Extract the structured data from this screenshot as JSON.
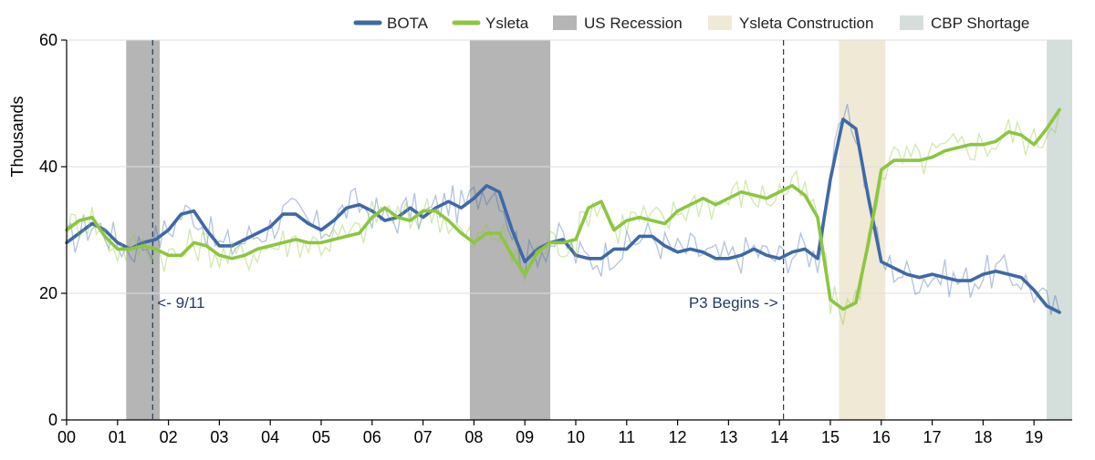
{
  "chart_data": {
    "type": "line",
    "ylabel": "Thousands",
    "xlim": [
      0,
      19.75
    ],
    "ylim": [
      0,
      60
    ],
    "y_ticks": [
      0,
      20,
      40,
      60
    ],
    "x_ticks": [
      0,
      1,
      2,
      3,
      4,
      5,
      6,
      7,
      8,
      9,
      10,
      11,
      12,
      13,
      14,
      15,
      16,
      17,
      18,
      19
    ],
    "x_tick_labels": [
      "00",
      "01",
      "02",
      "03",
      "04",
      "05",
      "06",
      "07",
      "08",
      "09",
      "10",
      "11",
      "12",
      "13",
      "14",
      "15",
      "16",
      "17",
      "18",
      "19"
    ],
    "grid": "horizontal",
    "legend_position": "top",
    "shaded_regions": [
      {
        "name": "US Recession",
        "ranges": [
          [
            1.17,
            1.83
          ],
          [
            7.92,
            9.5
          ]
        ],
        "color": "#b5b5b5"
      },
      {
        "name": "Ysleta Construction",
        "ranges": [
          [
            15.17,
            16.08
          ]
        ],
        "color": "#efe9d6"
      },
      {
        "name": "CBP Shortage",
        "ranges": [
          [
            19.25,
            19.75
          ]
        ],
        "color": "#d4dfdc"
      }
    ],
    "annotations": [
      {
        "text": "<- 9/11",
        "x": 1.69
      },
      {
        "text": "P3 Begins ->",
        "x": 14.08
      }
    ],
    "series": [
      {
        "name": "BOTA",
        "color": "#3f69a6",
        "x": [
          0,
          0.25,
          0.5,
          0.75,
          1,
          1.25,
          1.5,
          1.75,
          2,
          2.25,
          2.5,
          2.75,
          3,
          3.25,
          3.5,
          3.75,
          4,
          4.25,
          4.5,
          4.75,
          5,
          5.25,
          5.5,
          5.75,
          6,
          6.25,
          6.5,
          6.75,
          7,
          7.25,
          7.5,
          7.75,
          8,
          8.25,
          8.5,
          8.75,
          9,
          9.25,
          9.5,
          9.75,
          10,
          10.25,
          10.5,
          10.75,
          11,
          11.25,
          11.5,
          11.75,
          12,
          12.25,
          12.5,
          12.75,
          13,
          13.25,
          13.5,
          13.75,
          14,
          14.25,
          14.5,
          14.75,
          15,
          15.25,
          15.5,
          15.75,
          16,
          16.25,
          16.5,
          16.75,
          17,
          17.25,
          17.5,
          17.75,
          18,
          18.25,
          18.5,
          18.75,
          19,
          19.25,
          19.5
        ],
        "values": [
          28,
          29.5,
          31,
          30,
          28,
          27,
          28,
          28.5,
          30,
          32.5,
          33,
          30,
          27.5,
          27.5,
          28.5,
          29.5,
          30.5,
          32.5,
          32.5,
          31,
          30,
          31.5,
          33.5,
          34,
          33,
          31.5,
          32,
          33.5,
          32,
          33.5,
          34.5,
          33.5,
          35,
          37,
          36,
          30,
          25,
          27,
          28,
          28.5,
          26,
          25.5,
          25.5,
          27,
          27,
          29,
          29,
          27.5,
          26.5,
          27,
          26.5,
          25.5,
          25.5,
          26,
          27,
          26,
          25.5,
          26.5,
          27,
          25.5,
          38,
          47.5,
          46,
          35,
          25,
          24,
          23,
          22.5,
          23,
          22.5,
          22,
          22,
          23,
          23.5,
          23,
          22.5,
          20.5,
          18,
          17
        ]
      },
      {
        "name": "Ysleta",
        "color": "#8cc63f",
        "x": [
          0,
          0.25,
          0.5,
          0.75,
          1,
          1.25,
          1.5,
          1.75,
          2,
          2.25,
          2.5,
          2.75,
          3,
          3.25,
          3.5,
          3.75,
          4,
          4.25,
          4.5,
          4.75,
          5,
          5.25,
          5.5,
          5.75,
          6,
          6.25,
          6.5,
          6.75,
          7,
          7.25,
          7.5,
          7.75,
          8,
          8.25,
          8.5,
          8.75,
          9,
          9.25,
          9.5,
          9.75,
          10,
          10.25,
          10.5,
          10.75,
          11,
          11.25,
          11.5,
          11.75,
          12,
          12.25,
          12.5,
          12.75,
          13,
          13.25,
          13.5,
          13.75,
          14,
          14.25,
          14.5,
          14.75,
          15,
          15.25,
          15.5,
          15.75,
          16,
          16.25,
          16.5,
          16.75,
          17,
          17.25,
          17.5,
          17.75,
          18,
          18.25,
          18.5,
          18.75,
          19,
          19.25,
          19.5
        ],
        "values": [
          30,
          31.5,
          32,
          29,
          27,
          27,
          27.5,
          27,
          26,
          26,
          28,
          27.5,
          26,
          25.5,
          26,
          27,
          27.5,
          28,
          28.5,
          28,
          28,
          28.5,
          29,
          29.5,
          32,
          33.5,
          32,
          31.5,
          33,
          33,
          31.5,
          29.5,
          28,
          29.5,
          29.5,
          26,
          23,
          26.5,
          28,
          28,
          28.5,
          33.5,
          34.5,
          30,
          31.5,
          32,
          31.5,
          31,
          33,
          34,
          35,
          34,
          35,
          36,
          35.5,
          35,
          36,
          37,
          35.5,
          32,
          19,
          17.5,
          18.5,
          28,
          39.5,
          41,
          41,
          41,
          41.5,
          42.5,
          43,
          43.5,
          43.5,
          44,
          45.5,
          45,
          43.5,
          46,
          49
        ]
      }
    ]
  }
}
